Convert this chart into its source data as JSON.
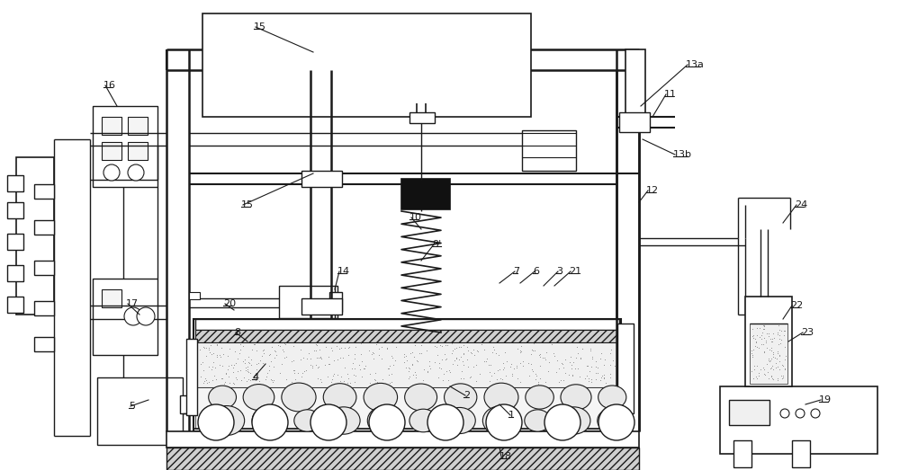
{
  "bg": "#ffffff",
  "lc": "#1a1a1a",
  "lw": 1.0,
  "fig_w": 10.0,
  "fig_h": 5.23
}
